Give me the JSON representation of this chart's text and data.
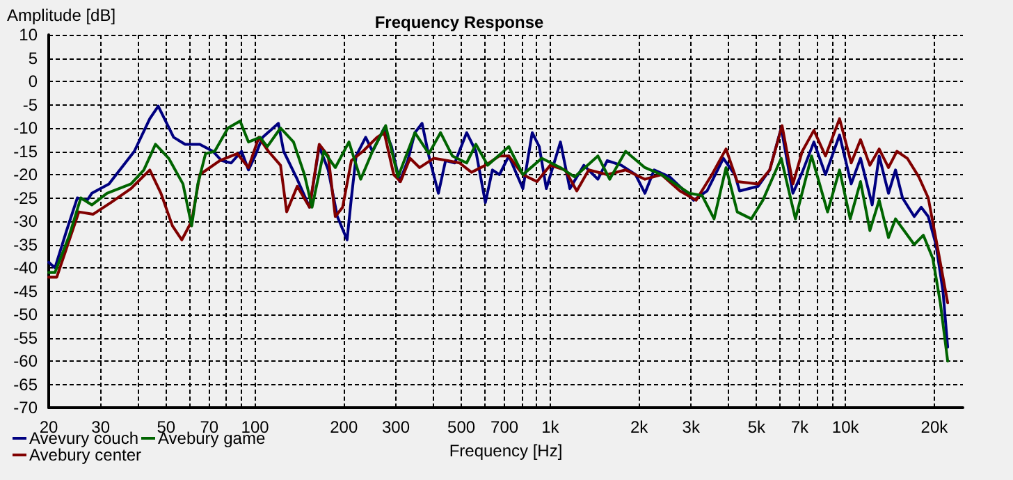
{
  "chart_data": {
    "type": "line",
    "title": "Frequency Response",
    "xlabel": "Frequency [Hz]",
    "ylabel": "Amplitude [dB]",
    "log": "x",
    "grid": true,
    "legend": "bottom left",
    "marker": "none",
    "xlim": [
      20,
      25000
    ],
    "ylim": [
      -70,
      10
    ],
    "xticks": [
      20,
      30,
      {
        "value": 40,
        "label": null
      },
      50,
      {
        "value": 60,
        "label": null
      },
      70,
      {
        "value": 80,
        "label": null
      },
      {
        "value": 90,
        "label": null
      },
      100,
      200,
      300,
      {
        "value": 400,
        "label": null
      },
      500,
      {
        "value": 600,
        "label": null
      },
      700,
      {
        "value": 800,
        "label": null
      },
      {
        "value": 900,
        "label": null
      },
      {
        "value": 1000,
        "label": "1k"
      },
      {
        "value": 2000,
        "label": "2k"
      },
      {
        "value": 3000,
        "label": "3k"
      },
      {
        "value": 4000,
        "label": null
      },
      {
        "value": 5000,
        "label": "5k"
      },
      {
        "value": 6000,
        "label": null
      },
      {
        "value": 7000,
        "label": "7k"
      },
      {
        "value": 8000,
        "label": null
      },
      {
        "value": 9000,
        "label": null
      },
      {
        "value": 10000,
        "label": "10k"
      },
      {
        "value": 20000,
        "label": "20k"
      }
    ],
    "yticks": [
      -70,
      -65,
      -60,
      -55,
      -50,
      -45,
      -40,
      -35,
      -30,
      -25,
      -20,
      -15,
      -10,
      -5,
      0,
      5,
      10
    ],
    "series": [
      {
        "name": "Avevury couch",
        "color": "#000080",
        "x": [
          20,
          21,
          23,
          25,
          27,
          28,
          32,
          39,
          44,
          47,
          53,
          58,
          65,
          72,
          77,
          83,
          90,
          95,
          100,
          106,
          120,
          125,
          139,
          153,
          165,
          177,
          190,
          205,
          212,
          220,
          237,
          250,
          274,
          290,
          309,
          329,
          348,
          368,
          388,
          418,
          442,
          475,
          521,
          560,
          603,
          637,
          673,
          724,
          808,
          869,
          918,
          970,
          1083,
          1165,
          1300,
          1450,
          1560,
          1742,
          1945,
          2093,
          2250,
          2540,
          2850,
          3060,
          3400,
          3860,
          4220,
          4380,
          5060,
          5540,
          6060,
          6640,
          7140,
          7820,
          8560,
          9550,
          10460,
          11250,
          12320,
          13010,
          13990,
          14780,
          15610,
          17100,
          18060,
          19080,
          20260,
          21400,
          22200
        ],
        "values": [
          -38.8,
          -40,
          -32,
          -25,
          -25.5,
          -24,
          -22,
          -15,
          -8,
          -5.3,
          -12,
          -13.5,
          -13.5,
          -15,
          -17,
          -17.5,
          -15,
          -19,
          -16,
          -12,
          -9,
          -15,
          -21,
          -27,
          -14,
          -19,
          -29,
          -34,
          -25,
          -16,
          -12,
          -15,
          -10,
          -14,
          -21.5,
          -17,
          -11,
          -9,
          -16,
          -24,
          -17,
          -17.5,
          -11,
          -15,
          -26,
          -19,
          -20,
          -16,
          -23,
          -11,
          -14,
          -23,
          -13,
          -23,
          -18,
          -21,
          -17,
          -18,
          -20,
          -24,
          -19,
          -20.5,
          -23.5,
          -25.5,
          -23.5,
          -16.5,
          -20,
          -23.5,
          -22.5,
          -19,
          -10,
          -24,
          -19.5,
          -13,
          -20,
          -11.5,
          -22,
          -16.5,
          -26.5,
          -16,
          -24,
          -19,
          -25,
          -29,
          -27,
          -29,
          -35,
          -45,
          -57
        ]
      },
      {
        "name": "Avebury center",
        "color": "#800000",
        "x": [
          20,
          21.3,
          23.5,
          25.3,
          28.3,
          32.5,
          38,
          44,
          48,
          52.5,
          56.5,
          61,
          65,
          76,
          87,
          95,
          103,
          111,
          122,
          128,
          139,
          153,
          165,
          177,
          187,
          198,
          212,
          232,
          259,
          274,
          295,
          311,
          335,
          361,
          403,
          450,
          493,
          541,
          603,
          673,
          724,
          808,
          902,
          1000,
          1123,
          1230,
          1350,
          1560,
          1800,
          2093,
          2380,
          2750,
          3120,
          3530,
          3940,
          4300,
          5060,
          5540,
          6100,
          6640,
          7140,
          7820,
          8560,
          9550,
          10460,
          11250,
          12100,
          13010,
          13990,
          14940,
          16200,
          17730,
          19080,
          20560,
          22200
        ],
        "values": [
          -42,
          -42,
          -34,
          -28,
          -28.5,
          -26,
          -23,
          -19,
          -24,
          -31,
          -34,
          -30,
          -20,
          -17,
          -15.5,
          -18.5,
          -12,
          -15,
          -18,
          -28,
          -22.5,
          -27,
          -13.5,
          -16,
          -29,
          -27,
          -17,
          -15,
          -12,
          -11,
          -20,
          -21.5,
          -16.5,
          -18.5,
          -16.5,
          -17,
          -17.5,
          -19.5,
          -18,
          -16,
          -16,
          -20,
          -21.5,
          -18,
          -19,
          -23.5,
          -19,
          -20,
          -19,
          -21,
          -20,
          -23.5,
          -25.5,
          -20,
          -14.5,
          -21.5,
          -22,
          -19,
          -9.5,
          -22,
          -15,
          -10.5,
          -16,
          -8,
          -17.5,
          -12.5,
          -18,
          -14.5,
          -18.5,
          -15,
          -16.5,
          -20.5,
          -25,
          -36,
          -47.5
        ]
      },
      {
        "name": "Avebury game",
        "color": "#006400",
        "x": [
          20,
          21,
          23.5,
          25.7,
          28,
          31.5,
          38,
          42,
          46,
          51,
          57,
          61,
          64,
          68,
          73,
          81,
          89,
          95,
          104,
          110,
          122,
          135,
          147,
          156,
          171,
          187,
          208,
          228,
          250,
          277,
          305,
          348,
          388,
          425,
          466,
          521,
          560,
          614,
          724,
          808,
          936,
          1083,
          1210,
          1450,
          1590,
          1800,
          2093,
          2380,
          2960,
          3270,
          3590,
          3940,
          4300,
          4800,
          5250,
          6060,
          6770,
          7680,
          8700,
          9550,
          10380,
          11250,
          12100,
          13010,
          13990,
          14780,
          17100,
          18360,
          19770,
          20960,
          22200
        ],
        "values": [
          -41,
          -41,
          -33,
          -25,
          -26.5,
          -24,
          -22,
          -19,
          -13.5,
          -16.5,
          -22,
          -31,
          -22,
          -15.5,
          -15,
          -10,
          -8.5,
          -13,
          -12,
          -14,
          -10,
          -13,
          -20,
          -27,
          -15,
          -18.5,
          -13,
          -21,
          -15,
          -9.5,
          -20.5,
          -11,
          -15.5,
          -11,
          -16,
          -17.5,
          -13.5,
          -18,
          -14,
          -20,
          -16.5,
          -18.5,
          -20.5,
          -16,
          -21,
          -15,
          -18.5,
          -20,
          -24,
          -24.5,
          -29.5,
          -18.5,
          -28,
          -29.5,
          -25.5,
          -16.5,
          -29.5,
          -16,
          -28,
          -19,
          -29.5,
          -21.5,
          -32,
          -25.5,
          -33.5,
          -29.5,
          -35,
          -33,
          -38,
          -47.5,
          -60
        ]
      }
    ]
  }
}
